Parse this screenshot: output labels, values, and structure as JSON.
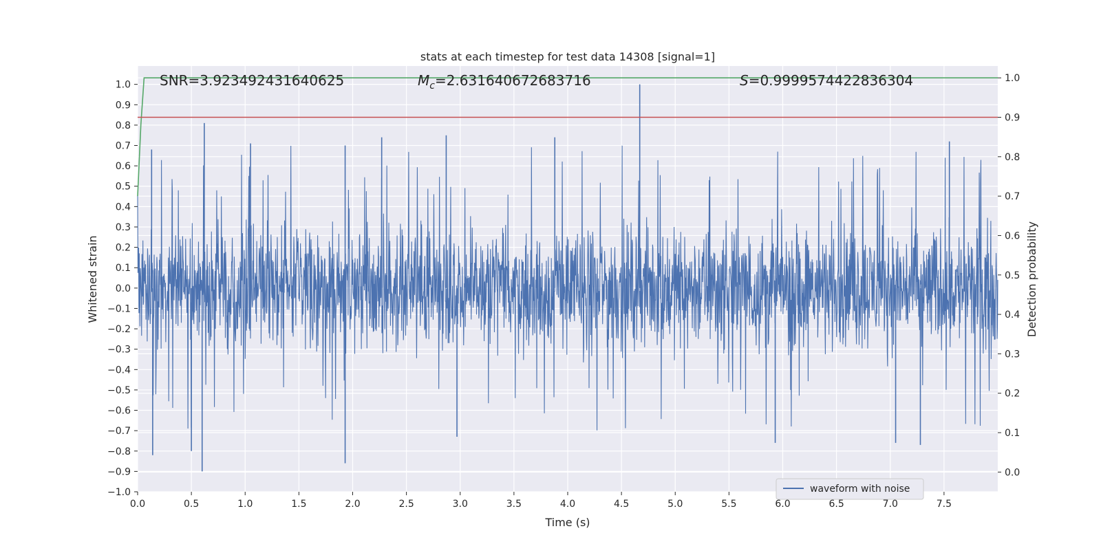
{
  "chart_data": {
    "type": "line",
    "title": "stats at each timestep for test data 14308 [signal=1]",
    "xlabel": "Time (s)",
    "ylabel": "Whitened strain",
    "ylabel_right": "Detection probability",
    "xlim": [
      0.0,
      8.0
    ],
    "ylim": [
      -1.0,
      1.09
    ],
    "ylim_right": [
      -0.05,
      1.03
    ],
    "x_ticks": [
      "0.0",
      "0.5",
      "1.0",
      "1.5",
      "2.0",
      "2.5",
      "3.0",
      "3.5",
      "4.0",
      "4.5",
      "5.0",
      "5.5",
      "6.0",
      "6.5",
      "7.0",
      "7.5"
    ],
    "y_ticks": [
      "1.0",
      "0.9",
      "0.8",
      "0.7",
      "0.6",
      "0.5",
      "0.4",
      "0.3",
      "0.2",
      "0.1",
      "0.0",
      "−0.1",
      "−0.2",
      "−0.3",
      "−0.4",
      "−0.5",
      "−0.6",
      "−0.7",
      "−0.8",
      "−0.9",
      "−1.0"
    ],
    "y_right_ticks": [
      "1.0",
      "0.9",
      "0.8",
      "0.7",
      "0.6",
      "0.5",
      "0.4",
      "0.3",
      "0.2",
      "0.1",
      "0.0"
    ],
    "grid": true,
    "legend": {
      "position": "lower-right",
      "entries": [
        "waveform with noise"
      ]
    },
    "annotations": {
      "snr": "SNR=3.923492431640625",
      "mc_symbol": "M",
      "mc_sub": "c",
      "mc_value": "=2.631640672683716",
      "s_symbol": "S",
      "s_value": "=0.9999574422836304"
    },
    "series": [
      {
        "name": "waveform with noise",
        "axis": "left",
        "color": "#4c72b0",
        "description_stats": {
          "typical_band": [
            -0.4,
            0.4
          ],
          "max": 1.0,
          "min": -0.9,
          "duration_s": 8.0
        },
        "peaks": [
          {
            "x": 0.13,
            "y": 0.68
          },
          {
            "x": 0.62,
            "y": 0.81
          },
          {
            "x": 1.05,
            "y": 0.71
          },
          {
            "x": 1.93,
            "y": 0.7
          },
          {
            "x": 2.27,
            "y": 0.74
          },
          {
            "x": 2.87,
            "y": 0.75
          },
          {
            "x": 3.88,
            "y": 0.74
          },
          {
            "x": 4.67,
            "y": 1.0
          },
          {
            "x": 7.55,
            "y": 0.72
          },
          {
            "x": 0.6,
            "y": -0.9
          },
          {
            "x": 1.93,
            "y": -0.86
          },
          {
            "x": 0.5,
            "y": -0.8
          },
          {
            "x": 0.14,
            "y": -0.82
          },
          {
            "x": 2.97,
            "y": -0.73
          },
          {
            "x": 5.93,
            "y": -0.76
          },
          {
            "x": 7.28,
            "y": -0.77
          },
          {
            "x": 7.05,
            "y": -0.76
          }
        ]
      },
      {
        "name": "",
        "axis": "right",
        "color": "#55a868",
        "x": [
          0.0,
          0.03,
          0.06,
          0.1,
          8.0
        ],
        "y": [
          0.7,
          0.88,
          1.0,
          1.0,
          1.0
        ]
      },
      {
        "name": "",
        "axis": "right",
        "color": "#c44e52",
        "x": [
          0.0,
          8.0
        ],
        "y": [
          0.9,
          0.9
        ]
      }
    ]
  }
}
